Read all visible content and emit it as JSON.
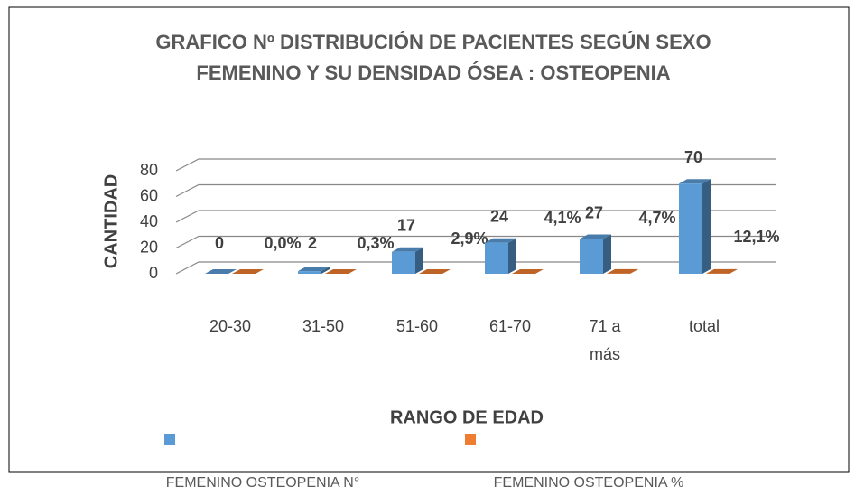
{
  "chart_data": {
    "type": "bar3d",
    "title": [
      "GRAFICO Nº    DISTRIBUCIÓN DE PACIENTES SEGÚN SEXO",
      "FEMENINO  Y SU DENSIDAD ÓSEA : OSTEOPENIA"
    ],
    "x_label": "RANGO DE EDAD",
    "y_label": "CANTIDAD",
    "categories": [
      [
        "20-30"
      ],
      [
        "31-50"
      ],
      [
        "51-60"
      ],
      [
        "61-70"
      ],
      [
        "71  a",
        "más"
      ],
      [
        "total"
      ]
    ],
    "series": [
      {
        "name": "FEMENINO OSTEOPENIA N°",
        "color": "#5b9bd5",
        "values": [
          0,
          2,
          17,
          24,
          27,
          70
        ]
      },
      {
        "name": "FEMENINO OSTEOPENIA %",
        "color": "#ed7d31",
        "values": [
          0,
          0.003,
          0.029,
          0.041,
          0.047,
          0.121
        ],
        "value_labels": [
          "0,0%",
          "0,3%",
          "2,9%",
          "4,1%",
          "4,7%",
          "12,1%"
        ]
      }
    ],
    "ylim": [
      0,
      80
    ],
    "yticks": [
      0,
      20,
      40,
      60,
      80
    ],
    "grid": true
  }
}
